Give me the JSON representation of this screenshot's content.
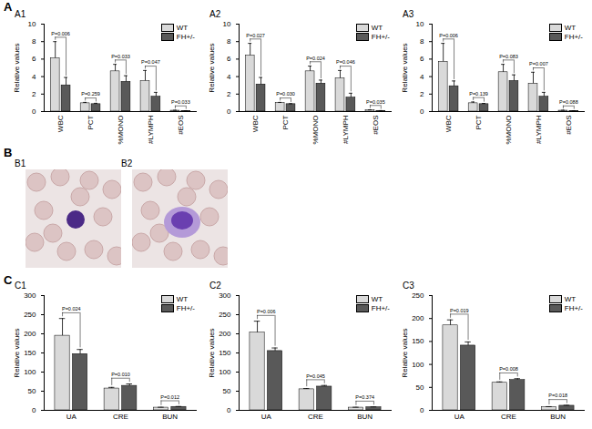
{
  "panels": [
    "A",
    "B",
    "C"
  ],
  "images": [
    {
      "label": "B1"
    },
    {
      "label": "B2"
    }
  ],
  "chart_data": [
    {
      "type": "bar",
      "title": "A1",
      "ylabel": "Relative values",
      "categories": [
        "WBC",
        "PCT",
        "%MONO",
        "#LYMPH",
        "#EOS"
      ],
      "series": [
        {
          "name": "WT",
          "color": "#d9d9d9",
          "values": [
            6.1,
            0.95,
            4.6,
            3.5,
            0.1
          ],
          "errors": [
            1.9,
            0.1,
            0.8,
            1.2,
            0.05
          ]
        },
        {
          "name": "FH+/-",
          "color": "#595959",
          "values": [
            3.0,
            0.85,
            3.4,
            1.7,
            0.07
          ],
          "errors": [
            0.9,
            0.1,
            0.7,
            0.5,
            0.03
          ]
        }
      ],
      "annotations": [
        "P=0.006",
        "P=0.259",
        "P=0.033",
        "P=0.047",
        "P=0.033"
      ],
      "ylim": [
        0,
        10
      ],
      "yticks": [
        0,
        2,
        4,
        6,
        8,
        10
      ],
      "legend": "top-right"
    },
    {
      "type": "bar",
      "title": "A2",
      "ylabel": "Relative values",
      "categories": [
        "WBC",
        "PCT",
        "%MONO",
        "#LYMPH",
        "#EOS"
      ],
      "series": [
        {
          "name": "WT",
          "color": "#d9d9d9",
          "values": [
            6.4,
            1.0,
            4.6,
            3.8,
            0.15
          ],
          "errors": [
            1.4,
            0.05,
            0.6,
            0.9,
            0.05
          ]
        },
        {
          "name": "FH+/-",
          "color": "#595959",
          "values": [
            3.1,
            0.85,
            3.2,
            1.6,
            0.08
          ],
          "errors": [
            0.8,
            0.05,
            0.4,
            0.5,
            0.03
          ]
        }
      ],
      "annotations": [
        "P=0.027",
        "P=0.030",
        "P=0.024",
        "P=0.046",
        "P=0.035"
      ],
      "ylim": [
        0,
        10
      ],
      "yticks": [
        0,
        2,
        4,
        6,
        8,
        10
      ],
      "legend": "top-right"
    },
    {
      "type": "bar",
      "title": "A3",
      "ylabel": "Relative values",
      "categories": [
        "WBC",
        "PCT",
        "%MONO",
        "#LYMPH",
        "#EOS"
      ],
      "series": [
        {
          "name": "WT",
          "color": "#d9d9d9",
          "values": [
            5.7,
            0.95,
            4.5,
            3.2,
            0.1
          ],
          "errors": [
            2.1,
            0.15,
            0.9,
            1.3,
            0.05
          ]
        },
        {
          "name": "FH+/-",
          "color": "#595959",
          "values": [
            2.9,
            0.85,
            3.5,
            1.7,
            0.07
          ],
          "errors": [
            0.6,
            0.08,
            0.7,
            0.5,
            0.03
          ]
        }
      ],
      "annotations": [
        "P=0.006",
        "P=0.139",
        "P=0.083",
        "P=0.007",
        "P=0.088"
      ],
      "ylim": [
        0,
        10
      ],
      "yticks": [
        0,
        2,
        4,
        6,
        8,
        10
      ],
      "legend": "top-right"
    },
    {
      "type": "bar",
      "title": "C1",
      "ylabel": "Relative values",
      "categories": [
        "UA",
        "CRE",
        "BUN"
      ],
      "series": [
        {
          "name": "WT",
          "color": "#d9d9d9",
          "values": [
            195,
            57,
            7
          ],
          "errors": [
            45,
            3,
            1
          ]
        },
        {
          "name": "FH+/-",
          "color": "#595959",
          "values": [
            147,
            64,
            9
          ],
          "errors": [
            12,
            5,
            1
          ]
        }
      ],
      "annotations": [
        "P=0.024",
        "P=0.010",
        "P=0.012"
      ],
      "ylim": [
        0,
        300
      ],
      "yticks": [
        0,
        50,
        100,
        150,
        200,
        250,
        300
      ],
      "legend": "top-right"
    },
    {
      "type": "bar",
      "title": "C2",
      "ylabel": "Relative values",
      "categories": [
        "UA",
        "CRE",
        "BUN"
      ],
      "series": [
        {
          "name": "WT",
          "color": "#d9d9d9",
          "values": [
            203,
            55,
            7
          ],
          "errors": [
            30,
            2,
            1
          ]
        },
        {
          "name": "FH+/-",
          "color": "#595959",
          "values": [
            155,
            62,
            8
          ],
          "errors": [
            8,
            3,
            1
          ]
        }
      ],
      "annotations": [
        "P=0.006",
        "P=0.045",
        "P=0.374"
      ],
      "ylim": [
        0,
        300
      ],
      "yticks": [
        0,
        50,
        100,
        150,
        200,
        250,
        300
      ],
      "legend": "top-right"
    },
    {
      "type": "bar",
      "title": "C3",
      "ylabel": "Relative values",
      "categories": [
        "UA",
        "CRE",
        "BUN"
      ],
      "series": [
        {
          "name": "WT",
          "color": "#d9d9d9",
          "values": [
            185,
            60,
            7
          ],
          "errors": [
            12,
            2,
            1
          ]
        },
        {
          "name": "FH+/-",
          "color": "#595959",
          "values": [
            141,
            66,
            10
          ],
          "errors": [
            8,
            3,
            1
          ]
        }
      ],
      "annotations": [
        "P=0.019",
        "P=0.008",
        "P=0.018"
      ],
      "ylim": [
        0,
        250
      ],
      "yticks": [
        0,
        50,
        100,
        150,
        200,
        250
      ],
      "legend": "top-right"
    }
  ]
}
